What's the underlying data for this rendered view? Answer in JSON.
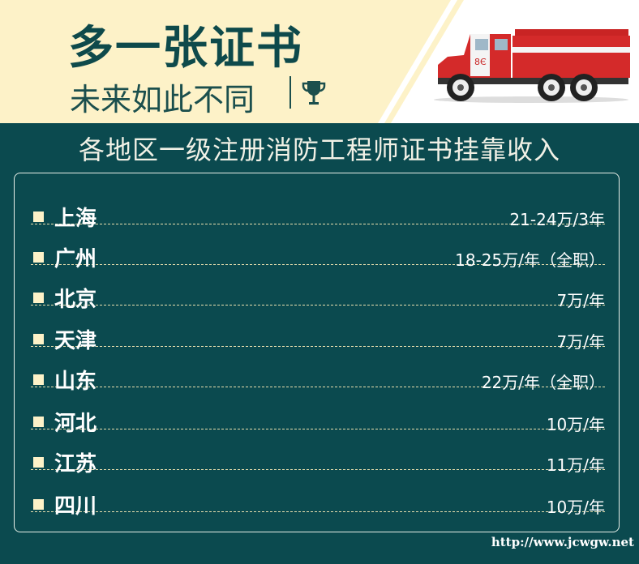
{
  "header": {
    "title": "多一张证书",
    "subtitle": "未来如此不同",
    "icon": "trophy-icon",
    "truck_plate": "8Є"
  },
  "heading": "各地区一级注册消防工程师证书挂靠收入",
  "rows": [
    {
      "city": "上海",
      "income": "21-24万/3年"
    },
    {
      "city": "广州",
      "income": "18-25万/年（全职）"
    },
    {
      "city": "北京",
      "income": "7万/年"
    },
    {
      "city": "天津",
      "income": "7万/年"
    },
    {
      "city": "山东",
      "income": "22万/年（全职）"
    },
    {
      "city": "河北",
      "income": "10万/年"
    },
    {
      "city": "江苏",
      "income": "11万/年"
    },
    {
      "city": "四川",
      "income": "10万/年"
    }
  ],
  "watermark": "http://www.jcwgw.net",
  "colors": {
    "background": "#0b4a4f",
    "cream": "#fdf2c8",
    "title": "#0e4a4b",
    "truck": "#d42a2a"
  }
}
